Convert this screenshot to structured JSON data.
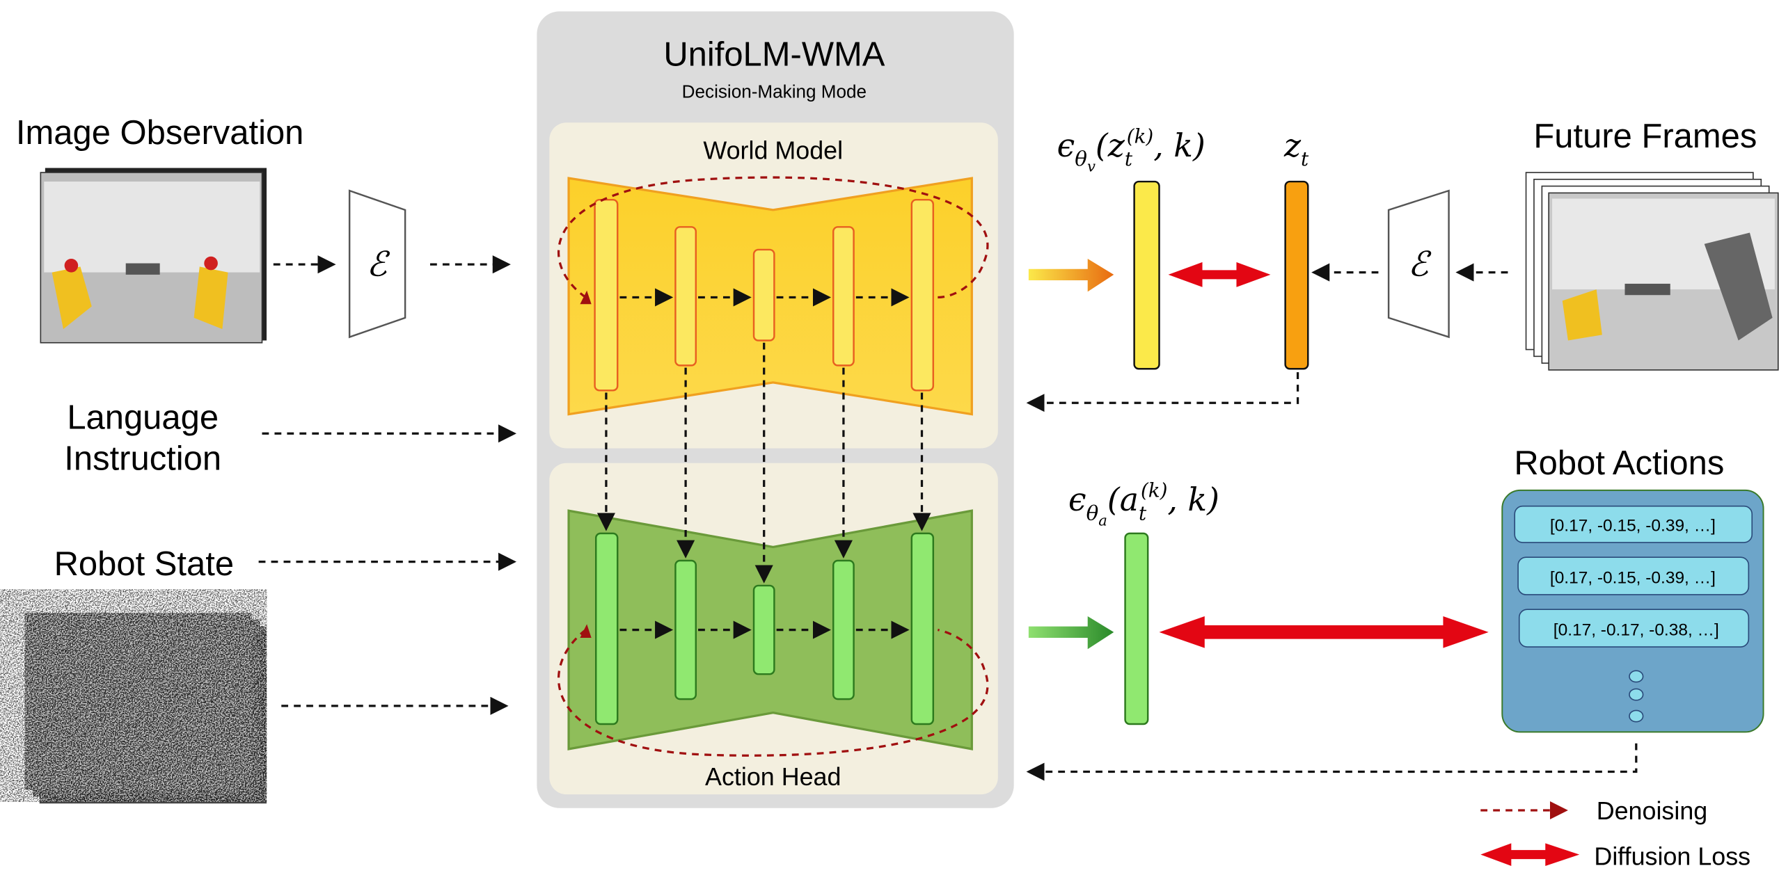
{
  "model": {
    "title": "UnifoLM-WMA",
    "subtitle": "Decision-Making Mode"
  },
  "world_model": {
    "label": "World Model"
  },
  "action_head": {
    "label": "Action Head"
  },
  "inputs": {
    "image_observation": "Image Observation",
    "language_line1": "Language",
    "language_line2": "Instruction",
    "robot_state": "Robot State"
  },
  "encoder_symbol": "ℰ",
  "future_frames": {
    "label": "Future Frames"
  },
  "world_pred": {
    "eps": "ϵ",
    "theta": "θ",
    "sub": "v",
    "open": "(z",
    "t": "t",
    "k": "(k)",
    "close": ", k)"
  },
  "z_label": {
    "z": "z",
    "t": "t"
  },
  "action_pred": {
    "eps": "ϵ",
    "theta": "θ",
    "sub": "a",
    "open": "(a",
    "t": "t",
    "k": "(k)",
    "close": ", k)"
  },
  "robot_actions": {
    "title": "Robot Actions",
    "rows": [
      "[0.17, -0.15, -0.39, …]",
      "[0.17, -0.15, -0.39, …]",
      "[0.17, -0.17, -0.38, …]"
    ]
  },
  "legend": {
    "denoising": "Denoising",
    "diffusion_loss": "Diffusion Loss"
  },
  "colors": {
    "panel": "#dcdcdc",
    "beige": "#f3efdf",
    "world_yellow": "#fcd535",
    "action_green": "#8fbe5a",
    "loss_red": "#e30613",
    "actions_blue": "#6da5c9"
  }
}
